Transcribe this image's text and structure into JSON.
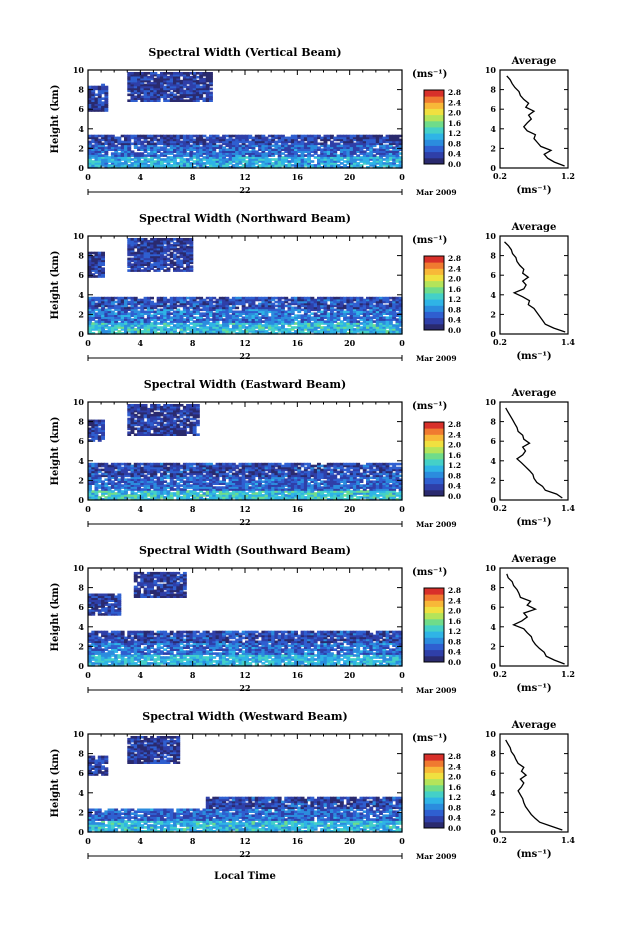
{
  "figure": {
    "xlabel": "Local Time",
    "date_day": "22",
    "date_month": "Mar 2009",
    "colorbar_unit": "(ms⁻¹)",
    "profile_title": "Average",
    "profile_xlabel": "(ms⁻¹)",
    "colormap": [
      "#2a2a6e",
      "#2f3fa8",
      "#2f5fd0",
      "#2b8cde",
      "#2fb4e6",
      "#44d0c8",
      "#6fdc8a",
      "#b4e45a",
      "#f0e040",
      "#f8b838",
      "#f07a30",
      "#d8302a"
    ]
  },
  "chart_data": [
    {
      "type": "heatmap",
      "title": "Spectral Width (Vertical Beam)",
      "ylabel": "Height (km)",
      "xlim": [
        0,
        24
      ],
      "ylim": [
        0,
        10
      ],
      "x_ticks": [
        "0",
        "4",
        "8",
        "12",
        "16",
        "20",
        "0"
      ],
      "y_ticks": [
        "0",
        "2",
        "4",
        "6",
        "8",
        "10"
      ],
      "colorbar": {
        "ticks": [
          "0.0",
          "0.4",
          "0.8",
          "1.2",
          "1.6",
          "2.0",
          "2.4",
          "2.8"
        ],
        "range": [
          0,
          2.8
        ]
      },
      "layers": [
        {
          "t0": 0,
          "t1": 24,
          "h0": 0,
          "h1": 1.2,
          "v": 1.0
        },
        {
          "t0": 0,
          "t1": 24,
          "h0": 1.2,
          "h1": 2.4,
          "v": 0.6
        },
        {
          "t0": 0,
          "t1": 24,
          "h0": 2.4,
          "h1": 3.4,
          "v": 0.35
        },
        {
          "t0": 3,
          "t1": 9.5,
          "h0": 6.8,
          "h1": 9.6,
          "v": 0.3
        },
        {
          "t0": 0,
          "t1": 1.5,
          "h0": 5.8,
          "h1": 8.6,
          "v": 0.35
        }
      ],
      "profile": {
        "xlim": [
          0.2,
          1.2
        ],
        "x_ticks": [
          "0.2",
          "1.2"
        ],
        "y_ticks": [
          "0",
          "2",
          "4",
          "6",
          "8",
          "10"
        ],
        "h": [
          0.2,
          0.6,
          1,
          1.4,
          1.8,
          2.2,
          2.6,
          3,
          3.4,
          3.8,
          4.2,
          4.6,
          5,
          5.4,
          5.8,
          6.2,
          6.6,
          7,
          7.4,
          7.8,
          8.2,
          8.6,
          9,
          9.4
        ],
        "v": [
          1.15,
          1.0,
          0.9,
          0.85,
          0.95,
          0.8,
          0.75,
          0.7,
          0.72,
          0.6,
          0.55,
          0.6,
          0.66,
          0.62,
          0.7,
          0.58,
          0.62,
          0.55,
          0.5,
          0.48,
          0.42,
          0.38,
          0.35,
          0.3
        ]
      }
    },
    {
      "type": "heatmap",
      "title": "Spectral Width (Northward Beam)",
      "ylabel": "Height (km)",
      "xlim": [
        0,
        24
      ],
      "ylim": [
        0,
        10
      ],
      "x_ticks": [
        "0",
        "4",
        "8",
        "12",
        "16",
        "20",
        "0"
      ],
      "y_ticks": [
        "0",
        "2",
        "4",
        "6",
        "8",
        "10"
      ],
      "colorbar": {
        "ticks": [
          "0.0",
          "0.4",
          "0.8",
          "1.2",
          "1.6",
          "2.0",
          "2.4",
          "2.8"
        ],
        "range": [
          0,
          2.8
        ]
      },
      "layers": [
        {
          "t0": 0,
          "t1": 24,
          "h0": 0,
          "h1": 1.2,
          "v": 1.1
        },
        {
          "t0": 0,
          "t1": 24,
          "h0": 1.2,
          "h1": 2.6,
          "v": 0.7
        },
        {
          "t0": 0,
          "t1": 24,
          "h0": 2.6,
          "h1": 3.8,
          "v": 0.45
        },
        {
          "t0": 3,
          "t1": 8,
          "h0": 6.4,
          "h1": 9.6,
          "v": 0.3
        },
        {
          "t0": 0,
          "t1": 1.2,
          "h0": 5.8,
          "h1": 8.4,
          "v": 0.35
        }
      ],
      "profile": {
        "xlim": [
          0.2,
          1.4
        ],
        "x_ticks": [
          "0.2",
          "1.4"
        ],
        "y_ticks": [
          "0",
          "2",
          "4",
          "6",
          "8",
          "10"
        ],
        "h": [
          0.2,
          0.6,
          1,
          1.4,
          1.8,
          2.2,
          2.6,
          3,
          3.4,
          3.8,
          4.2,
          4.6,
          5,
          5.4,
          5.8,
          6.2,
          6.6,
          7,
          7.4,
          7.8,
          8.2,
          8.6,
          9,
          9.4
        ],
        "v": [
          1.35,
          1.15,
          1.0,
          0.95,
          0.9,
          0.85,
          0.8,
          0.7,
          0.72,
          0.6,
          0.45,
          0.62,
          0.66,
          0.6,
          0.7,
          0.6,
          0.62,
          0.55,
          0.5,
          0.48,
          0.42,
          0.4,
          0.35,
          0.28
        ]
      }
    },
    {
      "type": "heatmap",
      "title": "Spectral Width (Eastward Beam)",
      "ylabel": "Height (km)",
      "xlim": [
        0,
        24
      ],
      "ylim": [
        0,
        10
      ],
      "x_ticks": [
        "0",
        "4",
        "8",
        "12",
        "16",
        "20",
        "0"
      ],
      "y_ticks": [
        "0",
        "2",
        "4",
        "6",
        "8",
        "10"
      ],
      "colorbar": {
        "ticks": [
          "0.0",
          "0.4",
          "0.8",
          "1.2",
          "1.6",
          "2.0",
          "2.4",
          "2.8"
        ],
        "range": [
          0,
          2.8
        ]
      },
      "layers": [
        {
          "t0": 0,
          "t1": 24,
          "h0": 0,
          "h1": 1.0,
          "v": 1.2
        },
        {
          "t0": 0,
          "t1": 24,
          "h0": 1.0,
          "h1": 2.4,
          "v": 0.6
        },
        {
          "t0": 0,
          "t1": 24,
          "h0": 2.4,
          "h1": 3.8,
          "v": 0.4
        },
        {
          "t0": 3,
          "t1": 8.5,
          "h0": 6.6,
          "h1": 9.6,
          "v": 0.3
        },
        {
          "t0": 0,
          "t1": 1.2,
          "h0": 6.0,
          "h1": 8.2,
          "v": 0.35
        }
      ],
      "profile": {
        "xlim": [
          0.2,
          1.4
        ],
        "x_ticks": [
          "0.2",
          "1.4"
        ],
        "y_ticks": [
          "0",
          "2",
          "4",
          "6",
          "8",
          "10"
        ],
        "h": [
          0.2,
          0.6,
          1,
          1.4,
          1.8,
          2.2,
          2.6,
          3,
          3.4,
          3.8,
          4.2,
          4.6,
          5,
          5.4,
          5.8,
          6.2,
          6.6,
          7,
          7.4,
          7.8,
          8.2,
          8.6,
          9,
          9.4
        ],
        "v": [
          1.3,
          1.2,
          1.0,
          0.95,
          0.85,
          0.8,
          0.78,
          0.72,
          0.65,
          0.58,
          0.5,
          0.6,
          0.65,
          0.6,
          0.72,
          0.62,
          0.6,
          0.52,
          0.5,
          0.46,
          0.42,
          0.38,
          0.34,
          0.3
        ]
      }
    },
    {
      "type": "heatmap",
      "title": "Spectral Width (Southward Beam)",
      "ylabel": "Height (km)",
      "xlim": [
        0,
        24
      ],
      "ylim": [
        0,
        10
      ],
      "x_ticks": [
        "0",
        "4",
        "8",
        "12",
        "16",
        "20",
        "0"
      ],
      "y_ticks": [
        "0",
        "2",
        "4",
        "6",
        "8",
        "10"
      ],
      "colorbar": {
        "ticks": [
          "0.0",
          "0.4",
          "0.8",
          "1.2",
          "1.6",
          "2.0",
          "2.4",
          "2.8"
        ],
        "range": [
          0,
          2.8
        ]
      },
      "layers": [
        {
          "t0": 0,
          "t1": 24,
          "h0": 0,
          "h1": 1.2,
          "v": 1.05
        },
        {
          "t0": 0,
          "t1": 24,
          "h0": 1.2,
          "h1": 2.4,
          "v": 0.65
        },
        {
          "t0": 0,
          "t1": 24,
          "h0": 2.4,
          "h1": 3.6,
          "v": 0.4
        },
        {
          "t0": 3.5,
          "t1": 7.5,
          "h0": 7.0,
          "h1": 9.5,
          "v": 0.3
        },
        {
          "t0": 0,
          "t1": 2.5,
          "h0": 5.2,
          "h1": 7.4,
          "v": 0.35
        }
      ],
      "profile": {
        "xlim": [
          0.2,
          1.2
        ],
        "x_ticks": [
          "0.2",
          "1.2"
        ],
        "y_ticks": [
          "0",
          "2",
          "4",
          "6",
          "8",
          "10"
        ],
        "h": [
          0.2,
          0.6,
          1,
          1.4,
          1.8,
          2.2,
          2.6,
          3,
          3.4,
          3.8,
          4.2,
          4.6,
          5,
          5.4,
          5.8,
          6.2,
          6.6,
          7,
          7.4,
          7.8,
          8.2,
          8.6,
          9,
          9.4
        ],
        "v": [
          1.15,
          1.0,
          0.88,
          0.85,
          0.78,
          0.72,
          0.68,
          0.66,
          0.6,
          0.55,
          0.4,
          0.52,
          0.6,
          0.55,
          0.72,
          0.6,
          0.65,
          0.5,
          0.48,
          0.45,
          0.4,
          0.38,
          0.32,
          0.3
        ]
      }
    },
    {
      "type": "heatmap",
      "title": "Spectral Width (Westward Beam)",
      "ylabel": "Height (km)",
      "xlim": [
        0,
        24
      ],
      "ylim": [
        0,
        10
      ],
      "x_ticks": [
        "0",
        "4",
        "8",
        "12",
        "16",
        "20",
        "0"
      ],
      "y_ticks": [
        "0",
        "2",
        "4",
        "6",
        "8",
        "10"
      ],
      "colorbar": {
        "ticks": [
          "0.0",
          "0.4",
          "0.8",
          "1.2",
          "1.6",
          "2.0",
          "2.4",
          "2.8"
        ],
        "range": [
          0,
          2.8
        ]
      },
      "layers": [
        {
          "t0": 0,
          "t1": 24,
          "h0": 0,
          "h1": 1.2,
          "v": 1.1
        },
        {
          "t0": 0,
          "t1": 24,
          "h0": 1.2,
          "h1": 2.4,
          "v": 0.6
        },
        {
          "t0": 9,
          "t1": 24,
          "h0": 2.4,
          "h1": 3.6,
          "v": 0.4
        },
        {
          "t0": 3,
          "t1": 7,
          "h0": 7.0,
          "h1": 9.6,
          "v": 0.3
        },
        {
          "t0": 0,
          "t1": 1.5,
          "h0": 5.8,
          "h1": 7.8,
          "v": 0.35
        }
      ],
      "profile": {
        "xlim": [
          0.2,
          1.4
        ],
        "x_ticks": [
          "0.2",
          "1.4"
        ],
        "y_ticks": [
          "0",
          "2",
          "4",
          "6",
          "8",
          "10"
        ],
        "h": [
          0.2,
          0.6,
          1,
          1.4,
          1.8,
          2.2,
          2.6,
          3,
          3.4,
          3.8,
          4.2,
          4.6,
          5,
          5.4,
          5.8,
          6.2,
          6.6,
          7,
          7.4,
          7.8,
          8.2,
          8.6,
          9,
          9.4
        ],
        "v": [
          1.3,
          1.1,
          0.9,
          0.82,
          0.75,
          0.7,
          0.65,
          0.62,
          0.6,
          0.56,
          0.52,
          0.58,
          0.62,
          0.56,
          0.66,
          0.58,
          0.62,
          0.52,
          0.48,
          0.45,
          0.4,
          0.38,
          0.34,
          0.3
        ]
      }
    }
  ]
}
